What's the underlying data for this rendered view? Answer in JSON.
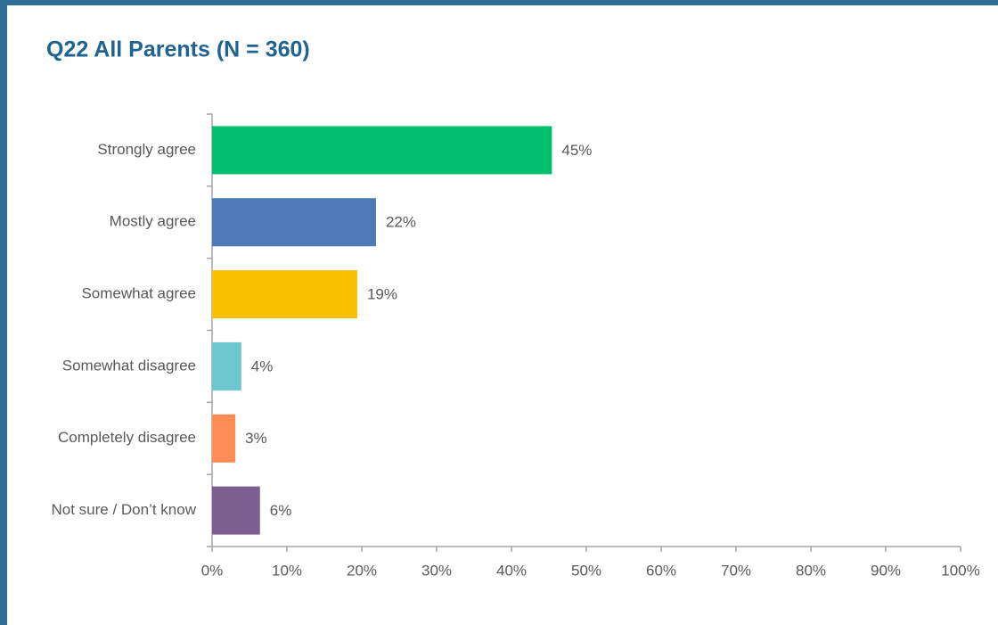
{
  "chart_data": {
    "type": "hbar",
    "title": "Q22 All Parents (N = 360)",
    "categories": [
      "Strongly agree",
      "Mostly agree",
      "Somewhat agree",
      "Somewhat disagree",
      "Completely disagree",
      "Not sure / Don’t know"
    ],
    "values": [
      45.4,
      21.9,
      19.4,
      3.9,
      3.1,
      6.4
    ],
    "value_labels": [
      "45%",
      "22%",
      "19%",
      "4%",
      "3%",
      "6%"
    ],
    "colors": [
      "#00bf6f",
      "#4e7ab5",
      "#f9c000",
      "#6ec7ce",
      "#ff8c55",
      "#7d5e91"
    ],
    "xlim": [
      0,
      100
    ],
    "xticks": [
      {
        "value": 0,
        "label": "0%"
      },
      {
        "value": 10,
        "label": "10%"
      },
      {
        "value": 20,
        "label": "20%"
      },
      {
        "value": 30,
        "label": "30%"
      },
      {
        "value": 40,
        "label": "40%"
      },
      {
        "value": 50,
        "label": "50%"
      },
      {
        "value": 60,
        "label": "60%"
      },
      {
        "value": 70,
        "label": "70%"
      },
      {
        "value": 80,
        "label": "80%"
      },
      {
        "value": 90,
        "label": "90%"
      },
      {
        "value": 100,
        "label": "100%"
      }
    ]
  }
}
